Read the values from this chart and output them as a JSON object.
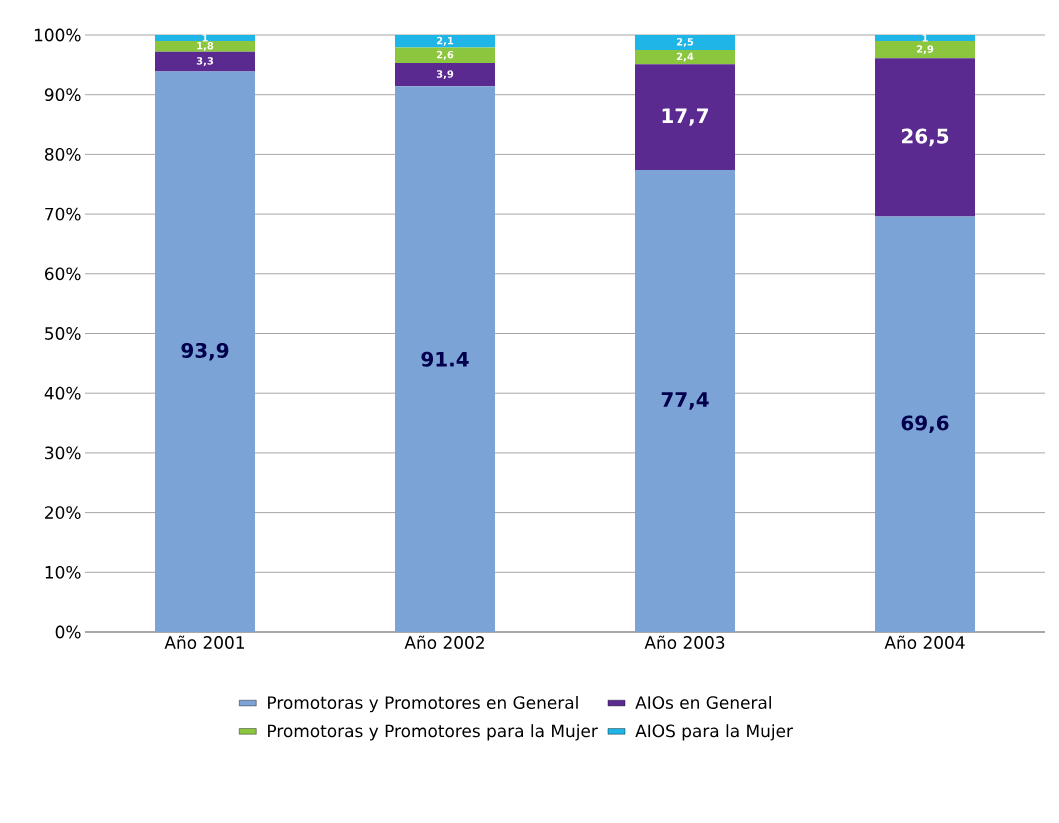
{
  "chart_data": {
    "type": "bar",
    "stacked": true,
    "categories": [
      "Año 2001",
      "Año 2002",
      "Año 2003",
      "Año 2004"
    ],
    "series": [
      {
        "name": "Promotoras y Promotores en General",
        "color": "#7ba3d6",
        "values": [
          93.9,
          91.4,
          77.4,
          69.6
        ],
        "value_labels": [
          "93,9",
          "91.4",
          "77,4",
          "69,6"
        ]
      },
      {
        "name": "AIOs en General",
        "color": "#5b2a91",
        "values": [
          3.3,
          3.9,
          17.7,
          26.5
        ],
        "value_labels": [
          "3,3",
          "3,9",
          "17,7",
          "26,5"
        ]
      },
      {
        "name": "Promotoras y Promotores para la Mujer",
        "color": "#8cc63f",
        "values": [
          1.8,
          2.6,
          2.4,
          2.9
        ],
        "value_labels": [
          "1,8",
          "2,6",
          "2,4",
          "2,9"
        ]
      },
      {
        "name": "AIOS para la Mujer",
        "color": "#1fb5e6",
        "values": [
          1,
          2.1,
          2.5,
          1
        ],
        "value_labels": [
          "1",
          "2,1",
          "2,5",
          "1"
        ]
      }
    ],
    "ylim": [
      0,
      100
    ],
    "yticks": [
      {
        "value": 0,
        "label": "0%"
      },
      {
        "value": 10,
        "label": "10%"
      },
      {
        "value": 20,
        "label": "20%"
      },
      {
        "value": 30,
        "label": "30%"
      },
      {
        "value": 40,
        "label": "40%"
      },
      {
        "value": 50,
        "label": "50%"
      },
      {
        "value": 60,
        "label": "60%"
      },
      {
        "value": 70,
        "label": "70%"
      },
      {
        "value": 80,
        "label": "80%"
      },
      {
        "value": 90,
        "label": "90%"
      },
      {
        "value": 100,
        "label": "100%"
      }
    ],
    "grid": "y",
    "legend": "bottom"
  }
}
